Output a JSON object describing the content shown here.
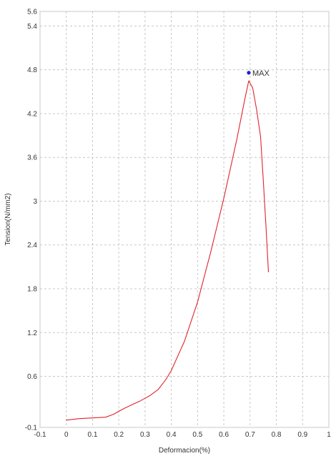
{
  "chart_data": {
    "type": "line",
    "xlabel": "Deformacion(%)",
    "ylabel": "Tension(N/mm2)",
    "xlim": [
      -0.1,
      1.0
    ],
    "ylim": [
      -0.1,
      5.6
    ],
    "x_ticks": [
      -0.1,
      0,
      0.1,
      0.2,
      0.3,
      0.4,
      0.5,
      0.6,
      0.7,
      0.8,
      0.9,
      1
    ],
    "x_tick_labels": [
      "-0.1",
      "0",
      "0.1",
      "0.2",
      "0.3",
      "0.4",
      "0.5",
      "0.6",
      "0.7",
      "0.8",
      "0.9",
      "1"
    ],
    "y_ticks": [
      -0.1,
      0.6,
      1.2,
      1.8,
      2.4,
      3.0,
      3.6,
      4.2,
      4.8,
      5.4,
      5.6
    ],
    "y_tick_labels": [
      "-0.1",
      "0.6",
      "1.2",
      "1.8",
      "2.4",
      "3",
      "3.6",
      "4.2",
      "4.8",
      "5.4",
      "5.6"
    ],
    "grid": true,
    "series": [
      {
        "color": "#e0242b",
        "x": [
          0,
          0.05,
          0.1,
          0.15,
          0.18,
          0.2,
          0.22,
          0.25,
          0.28,
          0.3,
          0.32,
          0.35,
          0.38,
          0.4,
          0.45,
          0.5,
          0.55,
          0.6,
          0.65,
          0.68,
          0.695,
          0.71,
          0.725,
          0.74,
          0.75,
          0.76,
          0.77
        ],
        "y": [
          0.0,
          0.02,
          0.03,
          0.04,
          0.08,
          0.12,
          0.16,
          0.21,
          0.26,
          0.3,
          0.34,
          0.42,
          0.56,
          0.68,
          1.08,
          1.62,
          2.3,
          3.04,
          3.86,
          4.4,
          4.65,
          4.55,
          4.25,
          3.88,
          3.3,
          2.68,
          2.03
        ]
      }
    ],
    "annotations": [
      {
        "label": "MAX",
        "x": 0.695,
        "y": 4.76,
        "marker_color": "#1f1fd6"
      }
    ]
  }
}
